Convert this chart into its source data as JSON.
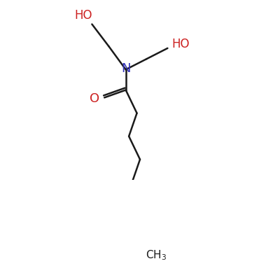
{
  "background_color": "#ffffff",
  "bond_color": "#1a1a1a",
  "N_color": "#3333bb",
  "O_color": "#cc2020",
  "text_color": "#1a1a1a",
  "N_label": "N",
  "O_label": "O",
  "HO1_label": "HO",
  "HO2_label": "HO",
  "CH3_label": "CH3",
  "N_fontsize": 13,
  "O_fontsize": 13,
  "label_fontsize": 12,
  "ch3_fontsize": 11,
  "lw": 1.8
}
